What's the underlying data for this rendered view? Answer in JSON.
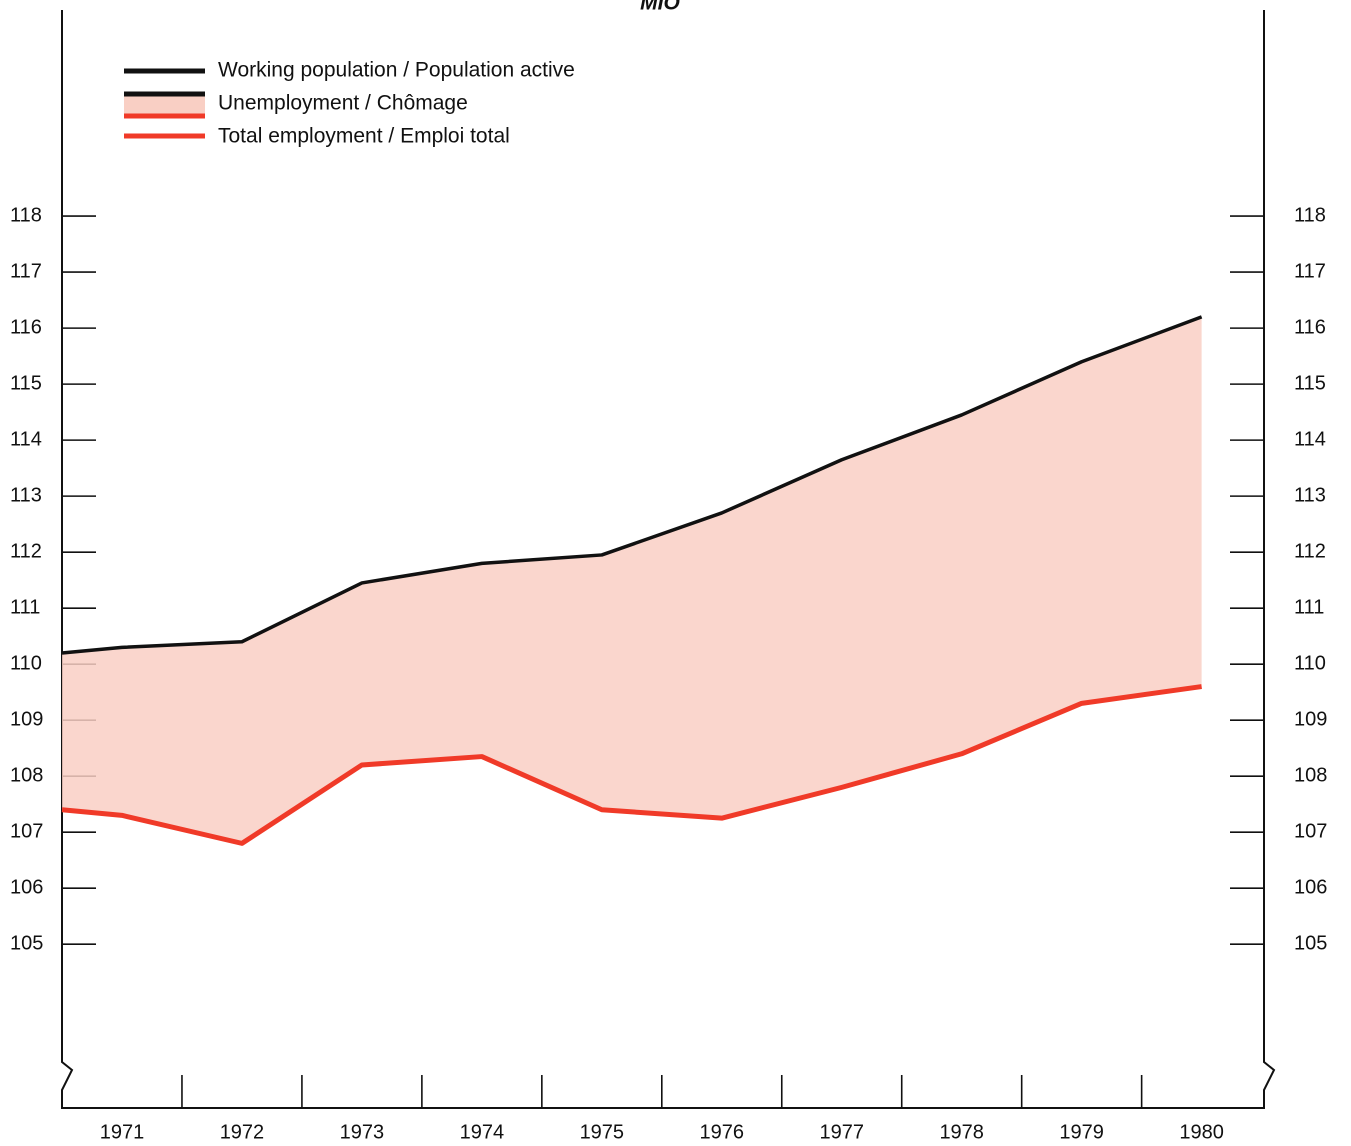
{
  "chart_data": {
    "type": "line",
    "title": "MIO",
    "x": [
      1970.5,
      1971,
      1972,
      1973,
      1974,
      1975,
      1976,
      1977,
      1978,
      1979,
      1980
    ],
    "xlim": [
      1970.5,
      1980.52
    ],
    "xticks": [
      1971,
      1972,
      1973,
      1974,
      1975,
      1976,
      1977,
      1978,
      1979,
      1980
    ],
    "ylim": [
      102.7,
      121.68
    ],
    "yticks": [
      105,
      106,
      107,
      108,
      109,
      110,
      111,
      112,
      113,
      114,
      115,
      116,
      117,
      118
    ],
    "series": [
      {
        "name": "Working population / Population active",
        "color": "#111111",
        "values": [
          110.2,
          110.3,
          110.4,
          111.45,
          111.8,
          111.95,
          112.7,
          113.65,
          114.45,
          115.4,
          116.2
        ]
      },
      {
        "name": "Unemployment / Chômage",
        "color": "#f9cfc4",
        "stacked_on": "Total employment / Emploi total",
        "values": [
          2.8,
          3.0,
          3.6,
          3.25,
          3.45,
          4.55,
          5.45,
          5.85,
          6.05,
          6.1,
          6.6
        ]
      },
      {
        "name": "Total employment / Emploi total",
        "color": "#f03a28",
        "values": [
          107.4,
          107.3,
          106.8,
          108.2,
          108.35,
          107.4,
          107.25,
          107.8,
          108.4,
          109.3,
          109.6
        ]
      }
    ]
  }
}
